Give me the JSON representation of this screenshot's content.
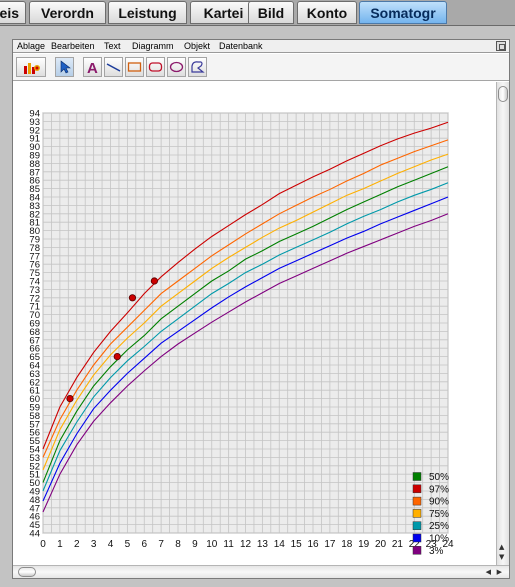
{
  "tabs": [
    {
      "label": "eis",
      "active": false
    },
    {
      "label": "Verordn",
      "active": false
    },
    {
      "label": "Leistung",
      "active": false
    },
    {
      "label": "Kartei",
      "active": false
    },
    {
      "label": "Bild",
      "active": false
    },
    {
      "label": "Konto",
      "active": false
    },
    {
      "label": "Somatogr",
      "active": true
    }
  ],
  "menubar": {
    "items": [
      "Ablage",
      "Bearbeiten",
      "Text",
      "Diagramm",
      "Objekt",
      "Datenbank"
    ]
  },
  "toolbar": {
    "tools": [
      {
        "icon": "chart-icon",
        "name": "chart-tool-button"
      },
      {
        "icon": "arrow-pointer-icon",
        "name": "select-tool-button"
      },
      {
        "icon": "text-a-icon",
        "name": "text-tool-button"
      },
      {
        "icon": "line-icon",
        "name": "line-tool-button"
      },
      {
        "icon": "rectangle-icon",
        "name": "rectangle-tool-button"
      },
      {
        "icon": "rounded-rectangle-icon",
        "name": "rounded-rectangle-tool-button"
      },
      {
        "icon": "ellipse-icon",
        "name": "ellipse-tool-button"
      },
      {
        "icon": "freeform-shape-icon",
        "name": "freeform-tool-button"
      }
    ]
  },
  "chart_data": {
    "type": "line",
    "title": "",
    "xlabel": "",
    "ylabel": "",
    "x": [
      0,
      1,
      2,
      3,
      4,
      5,
      6,
      7,
      8,
      9,
      10,
      11,
      12,
      13,
      14,
      15,
      16,
      17,
      18,
      19,
      20,
      21,
      22,
      23,
      24
    ],
    "xlim": [
      0,
      24
    ],
    "ylim": [
      44,
      94
    ],
    "grid": true,
    "legend_position": "bottom-right",
    "series": [
      {
        "name": "50%",
        "color": "#008000",
        "values": [
          50,
          55,
          58.5,
          61.5,
          63.8,
          65.8,
          67.5,
          69.5,
          71,
          72.5,
          74,
          75.2,
          76.6,
          77.6,
          78.7,
          79.6,
          80.5,
          81.5,
          82.5,
          83.4,
          84.3,
          85.2,
          86,
          86.8,
          87.6
        ]
      },
      {
        "name": "97%",
        "color": "#cc0000",
        "values": [
          54,
          59,
          62.5,
          65.5,
          68,
          70.2,
          72.5,
          74.5,
          76.2,
          77.8,
          79.3,
          80.6,
          81.9,
          83.1,
          84.4,
          85.4,
          86.4,
          87.3,
          88.3,
          89.2,
          90.1,
          90.9,
          91.6,
          92.2,
          92.9
        ]
      },
      {
        "name": "90%",
        "color": "#ff6600",
        "values": [
          53,
          57.5,
          61,
          64,
          66.5,
          68.5,
          70.5,
          72.5,
          74,
          75.5,
          77,
          78.3,
          79.6,
          80.8,
          82,
          83,
          84,
          84.9,
          85.9,
          86.8,
          87.8,
          88.6,
          89.4,
          90.1,
          90.8
        ]
      },
      {
        "name": "75%",
        "color": "#ffb000",
        "values": [
          51.5,
          56.3,
          59.8,
          62.8,
          65.2,
          67.2,
          69,
          71,
          72.5,
          74,
          75.5,
          76.8,
          78,
          79.2,
          80.3,
          81.2,
          82.2,
          83.2,
          84.2,
          85,
          85.9,
          86.8,
          87.6,
          88.4,
          89.1
        ]
      },
      {
        "name": "25%",
        "color": "#0099aa",
        "values": [
          49,
          53.8,
          57.2,
          60.2,
          62.5,
          64.5,
          66.2,
          68,
          69.5,
          71,
          72.5,
          73.7,
          75,
          76,
          77.1,
          78,
          78.9,
          79.8,
          80.8,
          81.7,
          82.5,
          83.4,
          84.2,
          84.9,
          85.7
        ]
      },
      {
        "name": "10%",
        "color": "#0000ee",
        "values": [
          47.8,
          52.3,
          55.8,
          58.8,
          61,
          63,
          64.8,
          66.6,
          68,
          69.4,
          70.8,
          72.1,
          73.3,
          74.4,
          75.5,
          76.4,
          77.3,
          78.2,
          79.1,
          79.9,
          80.8,
          81.6,
          82.4,
          83.2,
          84
        ]
      },
      {
        "name": "3%",
        "color": "#800080",
        "values": [
          46.5,
          51,
          54.5,
          57.3,
          59.5,
          61.5,
          63.3,
          65,
          66.5,
          67.8,
          69.1,
          70.3,
          71.5,
          72.6,
          73.7,
          74.6,
          75.5,
          76.4,
          77.3,
          78.1,
          78.9,
          79.7,
          80.5,
          81.2,
          82
        ]
      }
    ],
    "measurements": [
      {
        "x": 1.6,
        "y": 60
      },
      {
        "x": 4.4,
        "y": 65
      },
      {
        "x": 5.3,
        "y": 72
      },
      {
        "x": 6.6,
        "y": 74
      }
    ],
    "measurement_color": "#cc0000"
  }
}
